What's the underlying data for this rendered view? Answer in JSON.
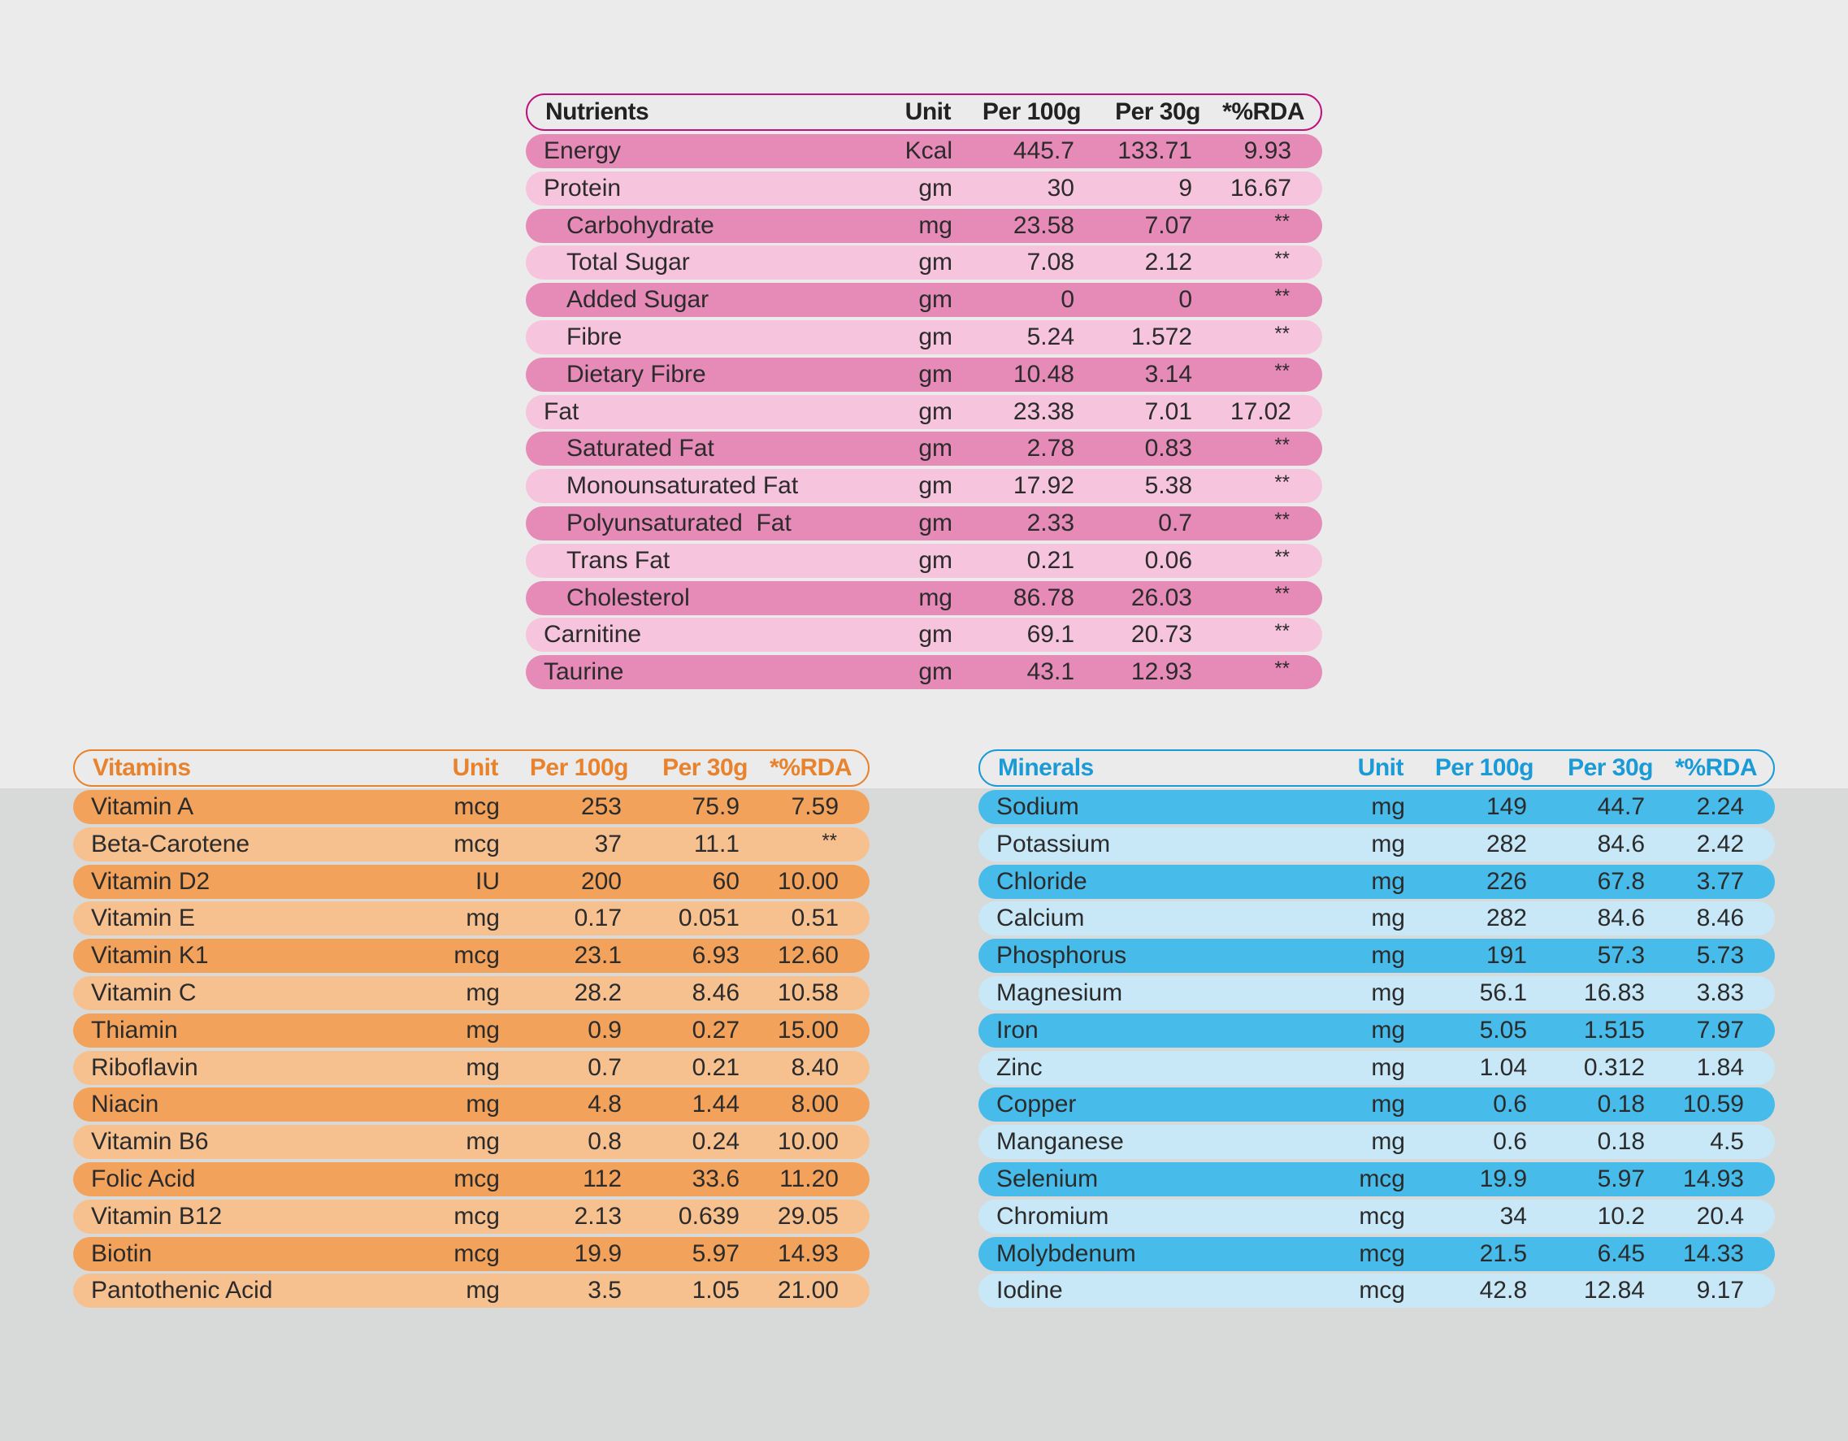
{
  "nutrients": {
    "header": {
      "name": "Nutrients",
      "unit": "Unit",
      "p100": "Per 100g",
      "p30": "Per 30g",
      "rda": "*%RDA"
    },
    "rows": [
      {
        "name": "Energy",
        "unit": "Kcal",
        "p100": "445.7",
        "p30": "133.71",
        "rda": "9.93",
        "indent": 0
      },
      {
        "name": "Protein",
        "unit": "gm",
        "p100": "30",
        "p30": "9",
        "rda": "16.67",
        "indent": 0
      },
      {
        "name": "Carbohydrate",
        "unit": "mg",
        "p100": "23.58",
        "p30": "7.07",
        "rda": "**",
        "indent": 1
      },
      {
        "name": "Total Sugar",
        "unit": "gm",
        "p100": "7.08",
        "p30": "2.12",
        "rda": "**",
        "indent": 1
      },
      {
        "name": "Added Sugar",
        "unit": "gm",
        "p100": "0",
        "p30": "0",
        "rda": "**",
        "indent": 1
      },
      {
        "name": "Fibre",
        "unit": "gm",
        "p100": "5.24",
        "p30": "1.572",
        "rda": "**",
        "indent": 1
      },
      {
        "name": "Dietary Fibre",
        "unit": "gm",
        "p100": "10.48",
        "p30": "3.14",
        "rda": "**",
        "indent": 1
      },
      {
        "name": "Fat",
        "unit": "gm",
        "p100": "23.38",
        "p30": "7.01",
        "rda": "17.02",
        "indent": 0
      },
      {
        "name": "Saturated Fat",
        "unit": "gm",
        "p100": "2.78",
        "p30": "0.83",
        "rda": "**",
        "indent": 1
      },
      {
        "name": "Monounsaturated Fat",
        "unit": "gm",
        "p100": "17.92",
        "p30": "5.38",
        "rda": "**",
        "indent": 1
      },
      {
        "name": "Polyunsaturated  Fat",
        "unit": "gm",
        "p100": "2.33",
        "p30": "0.7",
        "rda": "**",
        "indent": 1
      },
      {
        "name": "Trans Fat",
        "unit": "gm",
        "p100": "0.21",
        "p30": "0.06",
        "rda": "**",
        "indent": 1
      },
      {
        "name": "Cholesterol",
        "unit": "mg",
        "p100": "86.78",
        "p30": "26.03",
        "rda": "**",
        "indent": 1
      },
      {
        "name": "Carnitine",
        "unit": "gm",
        "p100": "69.1",
        "p30": "20.73",
        "rda": "**",
        "indent": 0
      },
      {
        "name": "Taurine",
        "unit": "gm",
        "p100": "43.1",
        "p30": "12.93",
        "rda": "**",
        "indent": 0
      }
    ]
  },
  "vitamins": {
    "header": {
      "name": "Vitamins",
      "unit": "Unit",
      "p100": "Per 100g",
      "p30": "Per 30g",
      "rda": "*%RDA"
    },
    "rows": [
      {
        "name": "Vitamin A",
        "unit": "mcg",
        "p100": "253",
        "p30": "75.9",
        "rda": "7.59"
      },
      {
        "name": "Beta-Carotene",
        "unit": "mcg",
        "p100": "37",
        "p30": "11.1",
        "rda": "**"
      },
      {
        "name": "Vitamin D2",
        "unit": "IU",
        "p100": "200",
        "p30": "60",
        "rda": "10.00"
      },
      {
        "name": "Vitamin E",
        "unit": "mg",
        "p100": "0.17",
        "p30": "0.051",
        "rda": "0.51"
      },
      {
        "name": "Vitamin K1",
        "unit": "mcg",
        "p100": "23.1",
        "p30": "6.93",
        "rda": "12.60"
      },
      {
        "name": "Vitamin C",
        "unit": "mg",
        "p100": "28.2",
        "p30": "8.46",
        "rda": "10.58"
      },
      {
        "name": "Thiamin",
        "unit": "mg",
        "p100": "0.9",
        "p30": "0.27",
        "rda": "15.00"
      },
      {
        "name": "Riboflavin",
        "unit": "mg",
        "p100": "0.7",
        "p30": "0.21",
        "rda": "8.40"
      },
      {
        "name": "Niacin",
        "unit": "mg",
        "p100": "4.8",
        "p30": "1.44",
        "rda": "8.00"
      },
      {
        "name": "Vitamin B6",
        "unit": "mg",
        "p100": "0.8",
        "p30": "0.24",
        "rda": "10.00"
      },
      {
        "name": "Folic Acid",
        "unit": "mcg",
        "p100": "112",
        "p30": "33.6",
        "rda": "11.20"
      },
      {
        "name": "Vitamin B12",
        "unit": "mcg",
        "p100": "2.13",
        "p30": "0.639",
        "rda": "29.05"
      },
      {
        "name": "Biotin",
        "unit": "mcg",
        "p100": "19.9",
        "p30": "5.97",
        "rda": "14.93"
      },
      {
        "name": "Pantothenic Acid",
        "unit": "mg",
        "p100": "3.5",
        "p30": "1.05",
        "rda": "21.00"
      }
    ]
  },
  "minerals": {
    "header": {
      "name": "Minerals",
      "unit": "Unit",
      "p100": "Per 100g",
      "p30": "Per 30g",
      "rda": "*%RDA"
    },
    "rows": [
      {
        "name": "Sodium",
        "unit": "mg",
        "p100": "149",
        "p30": "44.7",
        "rda": "2.24"
      },
      {
        "name": "Potassium",
        "unit": "mg",
        "p100": "282",
        "p30": "84.6",
        "rda": "2.42"
      },
      {
        "name": "Chloride",
        "unit": "mg",
        "p100": "226",
        "p30": "67.8",
        "rda": "3.77"
      },
      {
        "name": "Calcium",
        "unit": "mg",
        "p100": "282",
        "p30": "84.6",
        "rda": "8.46"
      },
      {
        "name": "Phosphorus",
        "unit": "mg",
        "p100": "191",
        "p30": "57.3",
        "rda": "5.73"
      },
      {
        "name": "Magnesium",
        "unit": "mg",
        "p100": "56.1",
        "p30": "16.83",
        "rda": "3.83"
      },
      {
        "name": "Iron",
        "unit": "mg",
        "p100": "5.05",
        "p30": "1.515",
        "rda": "7.97"
      },
      {
        "name": "Zinc",
        "unit": "mg",
        "p100": "1.04",
        "p30": "0.312",
        "rda": "1.84"
      },
      {
        "name": "Copper",
        "unit": "mg",
        "p100": "0.6",
        "p30": "0.18",
        "rda": "10.59"
      },
      {
        "name": "Manganese",
        "unit": "mg",
        "p100": "0.6",
        "p30": "0.18",
        "rda": "4.5"
      },
      {
        "name": "Selenium",
        "unit": "mcg",
        "p100": "19.9",
        "p30": "5.97",
        "rda": "14.93"
      },
      {
        "name": "Chromium",
        "unit": "mcg",
        "p100": "34",
        "p30": "10.2",
        "rda": "20.4"
      },
      {
        "name": "Molybdenum",
        "unit": "mcg",
        "p100": "21.5",
        "p30": "6.45",
        "rda": "14.33"
      },
      {
        "name": "Iodine",
        "unit": "mcg",
        "p100": "42.8",
        "p30": "12.84",
        "rda": "9.17"
      }
    ]
  },
  "colors": {
    "nutrients_accent": "#c0107f",
    "vitamins_accent": "#e8822d",
    "minerals_accent": "#1a9ad6"
  }
}
